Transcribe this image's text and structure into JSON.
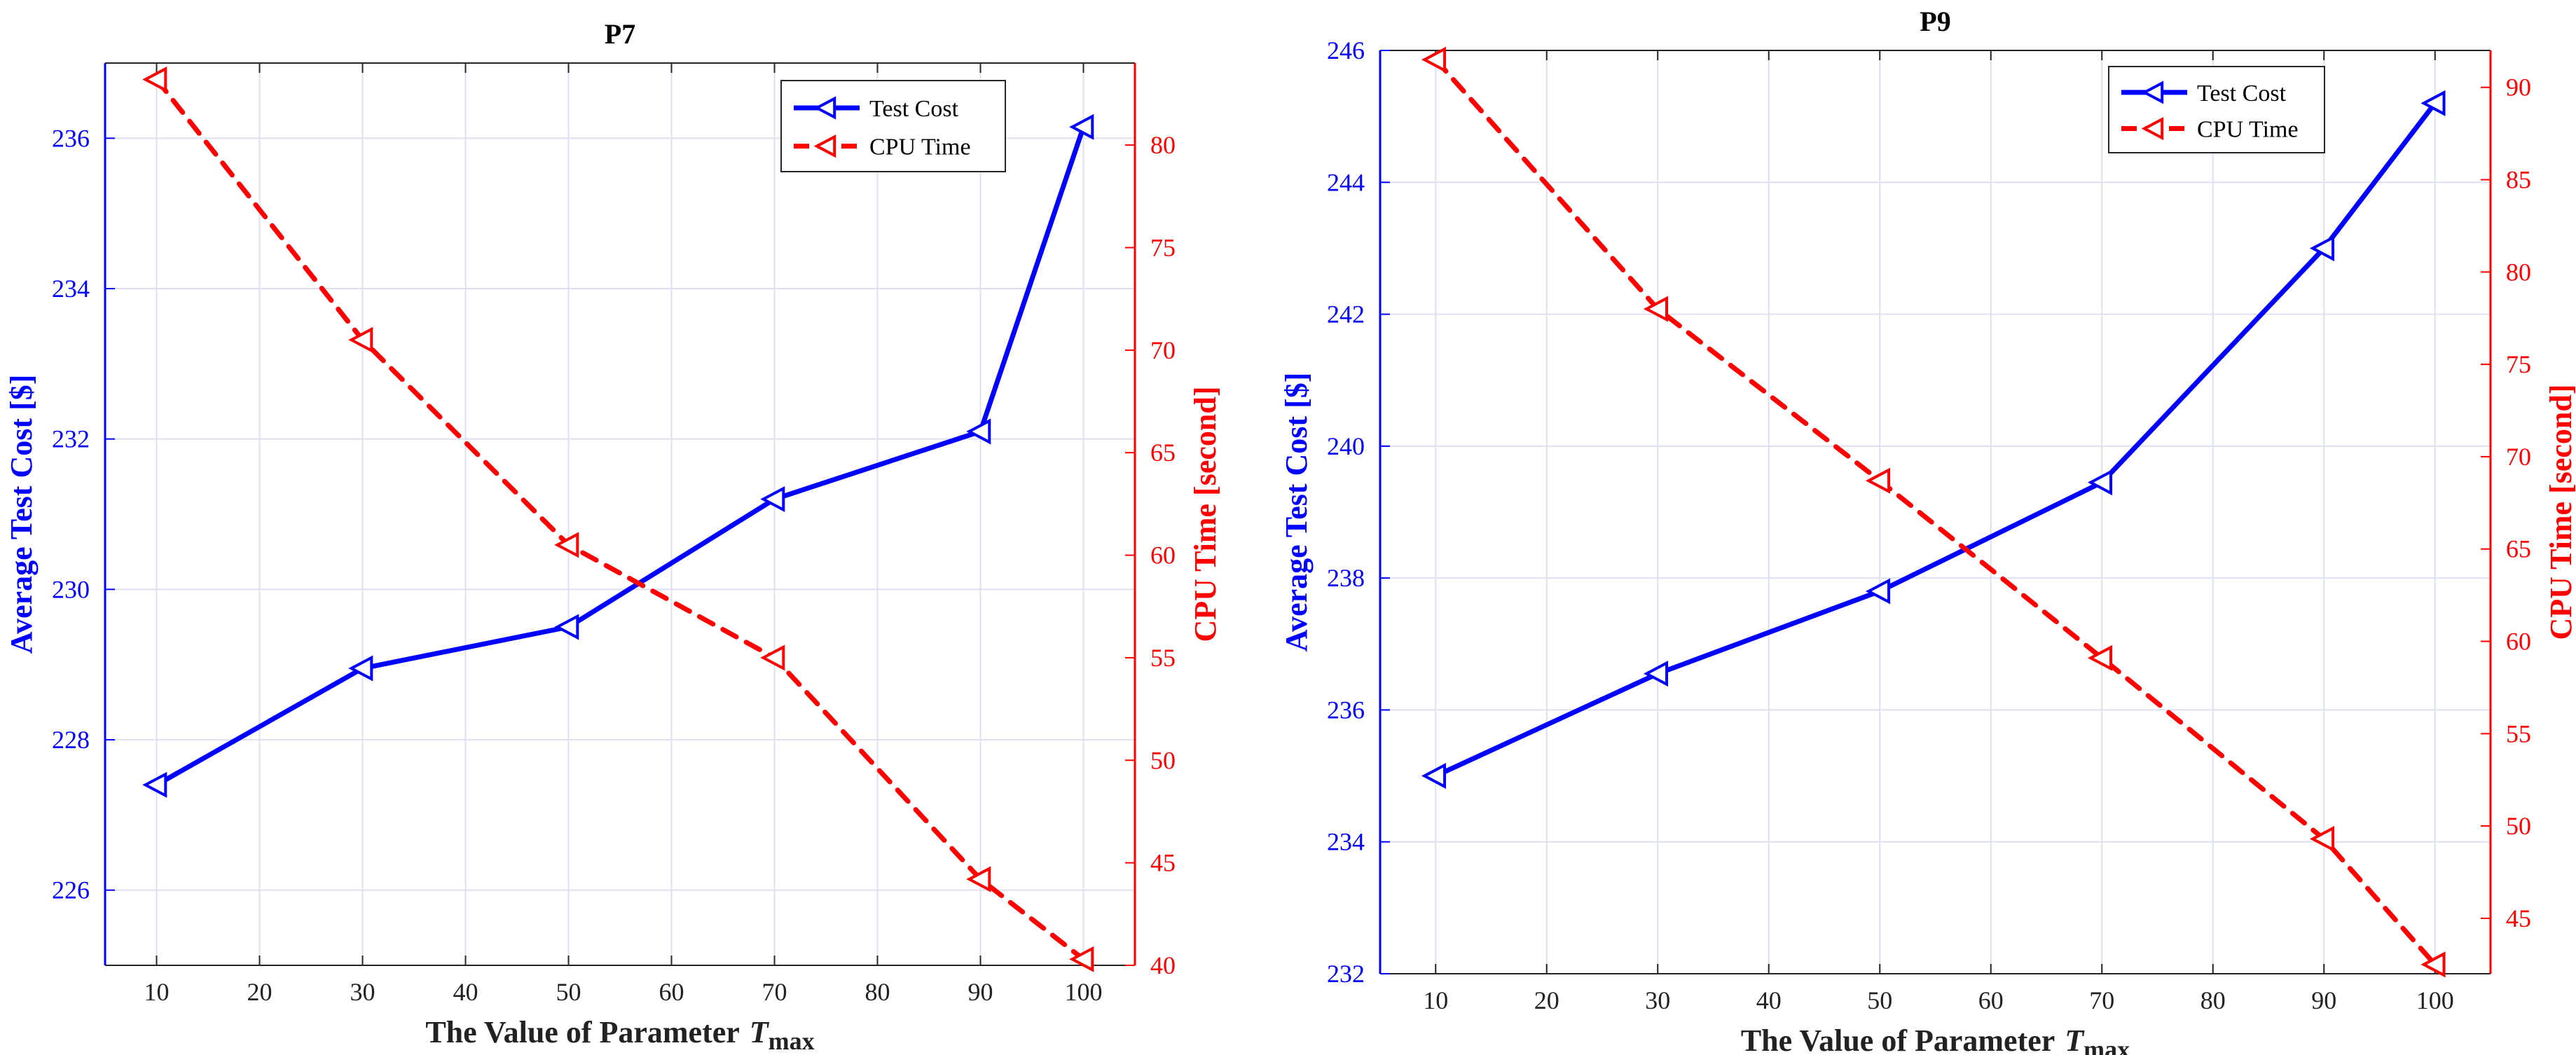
{
  "chart_data": [
    {
      "type": "line",
      "title": "P7",
      "xlabel": "The Value of Parameter",
      "xlabel_symbol": "T",
      "xlabel_subscript": "max",
      "ylabel_left": "Average Test Cost [$]",
      "ylabel_right": "CPU Time [second]",
      "xlim": [
        5,
        105
      ],
      "xticks": [
        10,
        20,
        30,
        40,
        50,
        60,
        70,
        80,
        90,
        100
      ],
      "ylim_left": [
        225,
        237
      ],
      "yticks_left": [
        226,
        228,
        230,
        232,
        234,
        236
      ],
      "ylim_right": [
        40,
        84
      ],
      "yticks_right": [
        40,
        45,
        50,
        55,
        60,
        65,
        70,
        75,
        80
      ],
      "grid": true,
      "legend_position": "top-right",
      "series": [
        {
          "name": "Test Cost",
          "axis": "left",
          "color": "#0000ff",
          "style": "solid",
          "x": [
            10,
            30,
            50,
            70,
            90,
            100
          ],
          "values": [
            227.4,
            228.95,
            229.5,
            231.2,
            232.1,
            236.15
          ]
        },
        {
          "name": "CPU Time",
          "axis": "right",
          "color": "#ff0000",
          "style": "dashed",
          "x": [
            10,
            30,
            50,
            70,
            90,
            100
          ],
          "values": [
            83.2,
            70.5,
            60.5,
            55.0,
            44.2,
            40.3
          ]
        }
      ]
    },
    {
      "type": "line",
      "title": "P9",
      "xlabel": "The Value of Parameter",
      "xlabel_symbol": "T",
      "xlabel_subscript": "max",
      "ylabel_left": "Average Test Cost [$]",
      "ylabel_right": "CPU Time [second]",
      "xlim": [
        5,
        105
      ],
      "xticks": [
        10,
        20,
        30,
        40,
        50,
        60,
        70,
        80,
        90,
        100
      ],
      "ylim_left": [
        232,
        246
      ],
      "yticks_left": [
        232,
        234,
        236,
        238,
        240,
        242,
        244,
        246
      ],
      "ylim_right": [
        42,
        92
      ],
      "yticks_right": [
        45,
        50,
        55,
        60,
        65,
        70,
        75,
        80,
        85,
        90
      ],
      "grid": true,
      "legend_position": "top-right",
      "series": [
        {
          "name": "Test Cost",
          "axis": "left",
          "color": "#0000ff",
          "style": "solid",
          "x": [
            10,
            30,
            50,
            70,
            90,
            100
          ],
          "values": [
            235.0,
            236.55,
            237.8,
            239.45,
            243.0,
            245.2
          ]
        },
        {
          "name": "CPU Time",
          "axis": "right",
          "color": "#ff0000",
          "style": "dashed",
          "x": [
            10,
            30,
            50,
            70,
            90,
            100
          ],
          "values": [
            91.5,
            78.0,
            68.7,
            59.1,
            49.3,
            42.5
          ]
        }
      ]
    }
  ]
}
